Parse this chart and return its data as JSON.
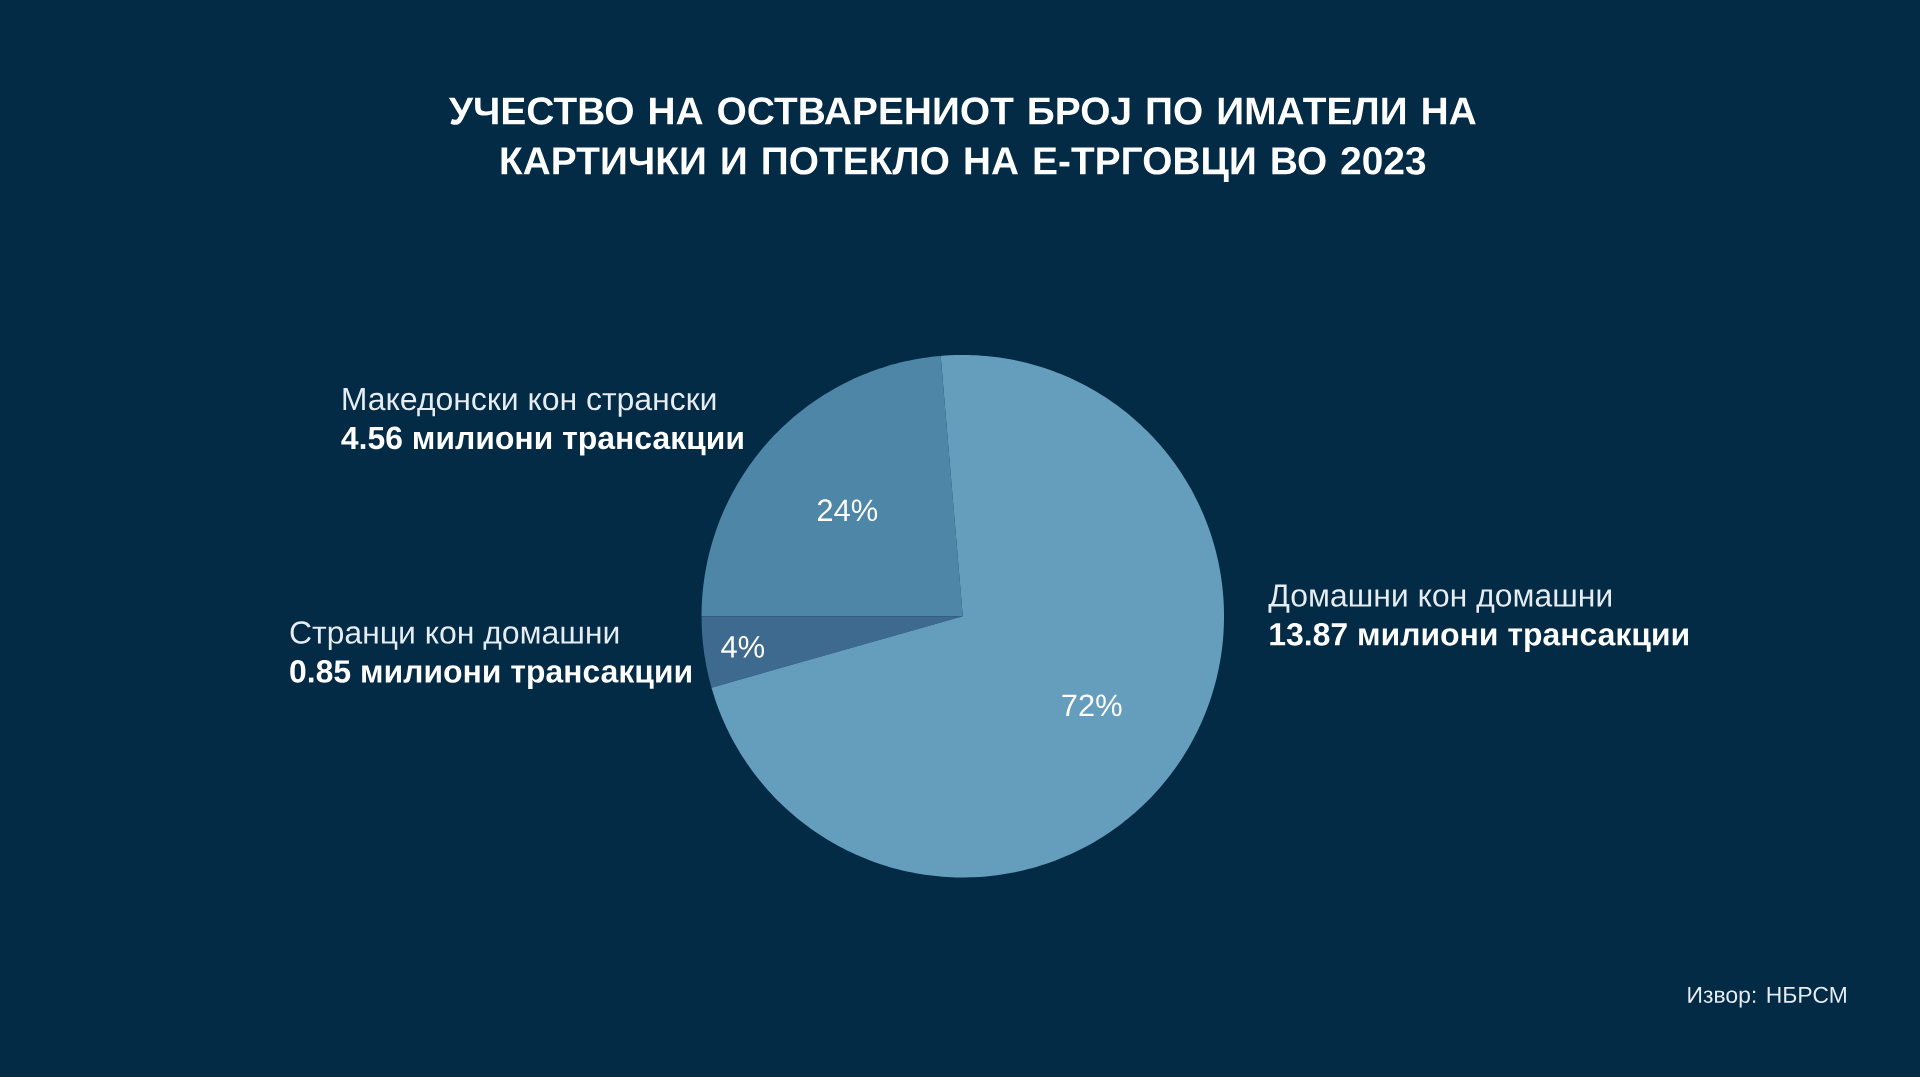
{
  "chart_data": {
    "type": "pie",
    "title": "УЧЕСТВО НА ОСТВАРЕНИОТ БРОЈ ПО ИМАТЕЛИ НА КАРТИЧКИ И ПОТЕКЛО НА Е-ТРГОВЦИ ВО 2023",
    "categories": [
      "Македонски кон странски",
      "Странци кон домашни",
      "Домашни кон домашни"
    ],
    "values": [
      4.56,
      0.85,
      13.87
    ],
    "value_labels": [
      "4.56 милиони трансакции",
      "0.85 милиони трансакции",
      "13.87 милиони трансакции"
    ],
    "colors": [
      "#4e86a8",
      "#3d6a8e",
      "#659dbd"
    ],
    "annotations": [
      {
        "text": "24%",
        "x": "Македонски кон странски"
      },
      {
        "text": "4%",
        "x": "Странци кон домашни"
      },
      {
        "text": "72%",
        "x": "Домашни кон домашни"
      },
      "Извор: НБРСМ"
    ]
  }
}
